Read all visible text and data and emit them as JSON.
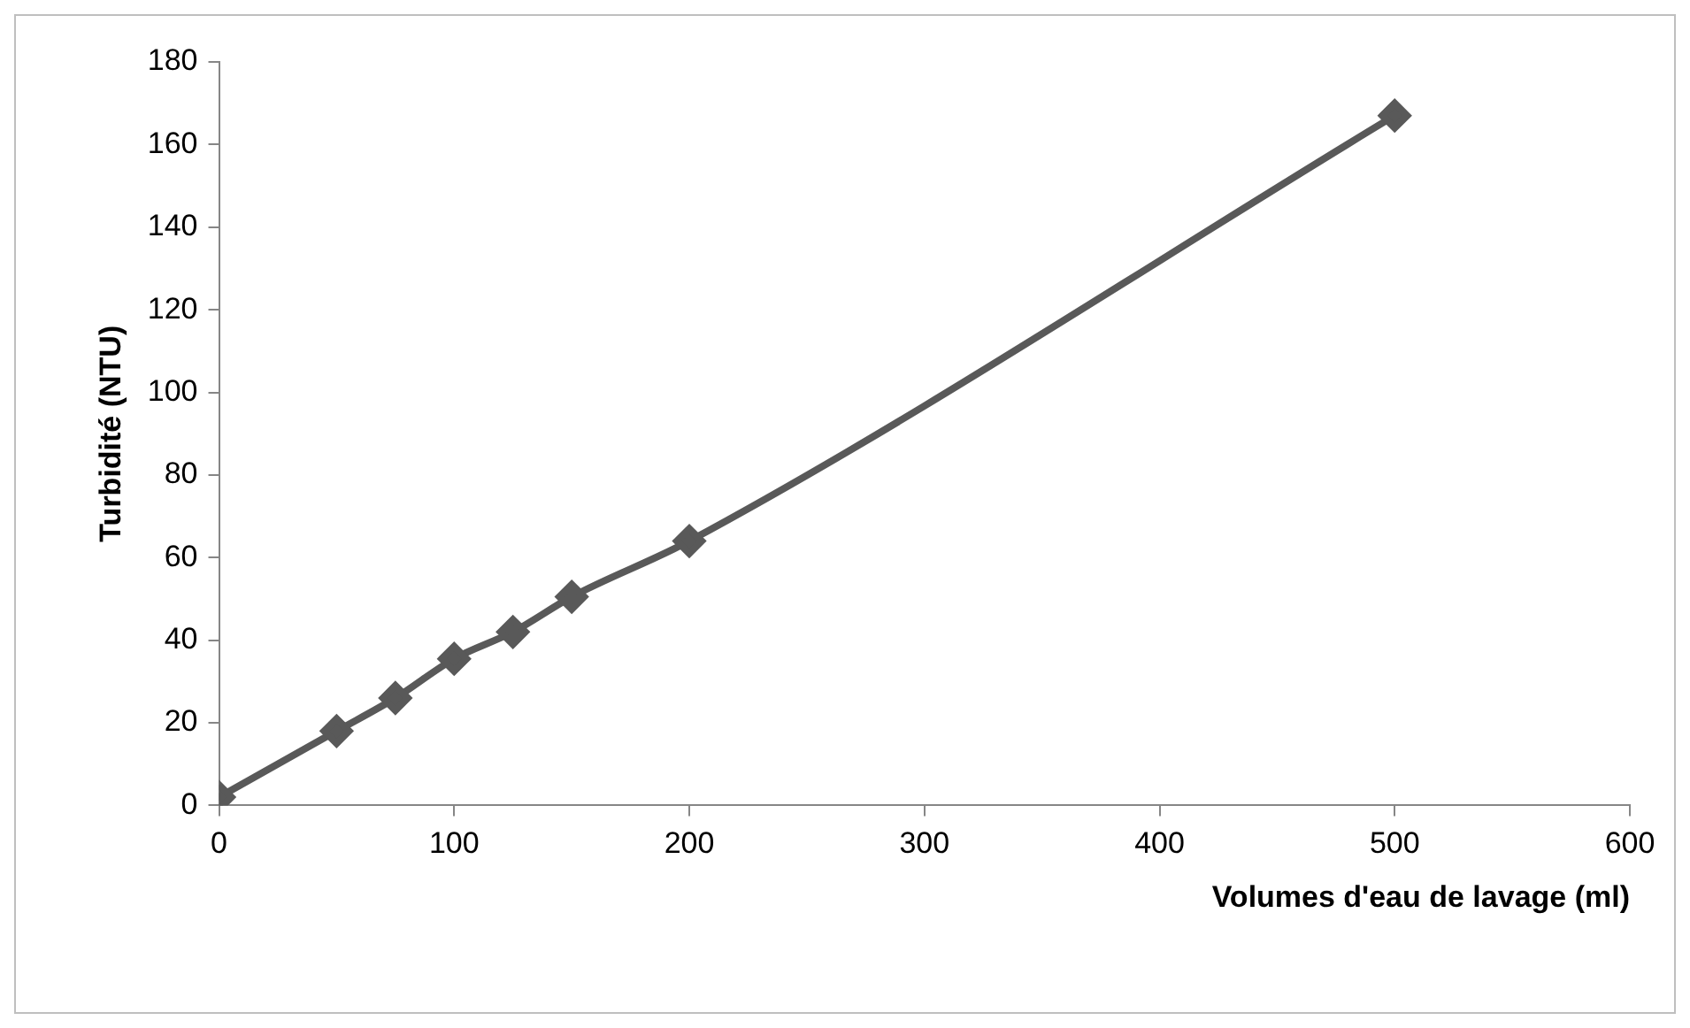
{
  "chart_data": {
    "type": "line",
    "xlabel": "Volumes d'eau de lavage (ml)",
    "ylabel": "Turbidité (NTU)",
    "x": [
      0,
      50,
      75,
      100,
      125,
      150,
      200,
      500
    ],
    "series": [
      {
        "color": "#595959",
        "values": [
          2,
          18,
          26,
          35.5,
          42,
          50.5,
          64,
          167
        ]
      }
    ],
    "xlim": [
      0,
      600
    ],
    "xticks": [
      0,
      100,
      200,
      300,
      400,
      500,
      600
    ],
    "ylim": [
      0,
      180
    ],
    "yticks": [
      0,
      20,
      40,
      60,
      80,
      100,
      120,
      140,
      160,
      180
    ],
    "grid": false,
    "legend": false,
    "marker": "diamond",
    "line_style": "solid"
  }
}
